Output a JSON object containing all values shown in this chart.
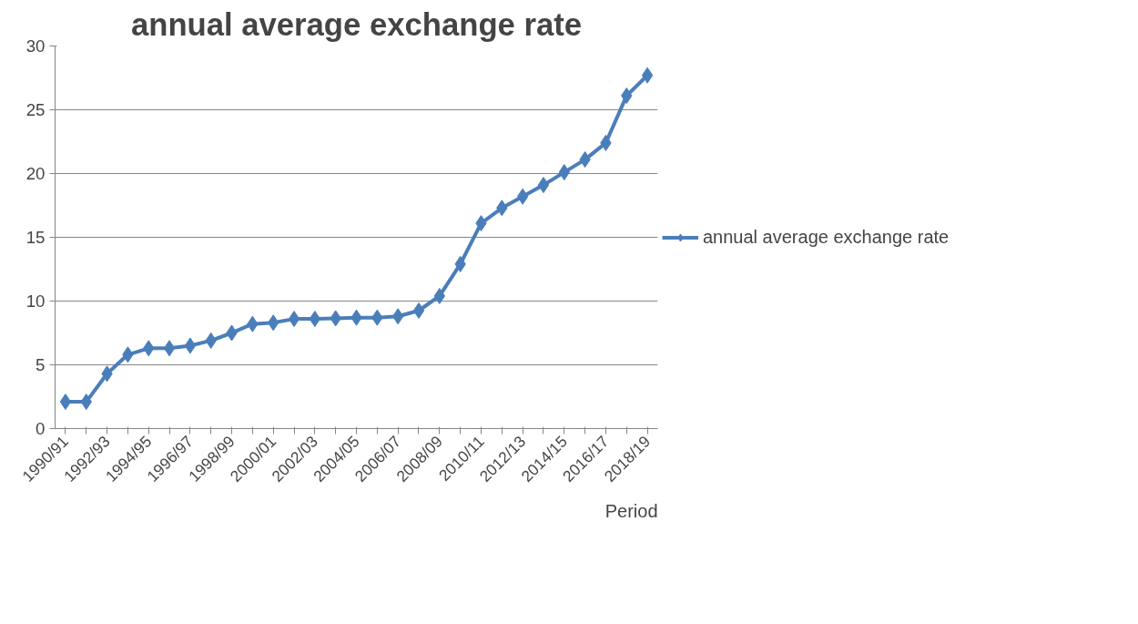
{
  "chart_data": {
    "type": "line",
    "title": "annual average exchange rate",
    "xlabel": "Period",
    "categories": [
      "1990/91",
      null,
      "1992/93",
      null,
      "1994/95",
      null,
      "1996/97",
      null,
      "1998/99",
      null,
      "2000/01",
      null,
      "2002/03",
      null,
      "2004/05",
      null,
      "2006/07",
      null,
      "2008/09",
      null,
      "2010/11",
      null,
      "2012/13",
      null,
      "2014/15",
      null,
      "2016/17",
      null,
      "2018/19"
    ],
    "series": [
      {
        "name": "annual average exchange rate",
        "color": "#4a7ebb",
        "values": [
          2.1,
          2.1,
          4.3,
          5.8,
          6.3,
          6.3,
          6.5,
          6.9,
          7.5,
          8.2,
          8.3,
          8.6,
          8.6,
          8.65,
          8.7,
          8.7,
          8.8,
          9.25,
          10.4,
          12.9,
          16.1,
          17.3,
          18.2,
          19.1,
          20.1,
          21.1,
          22.4,
          26.1,
          27.7
        ]
      }
    ],
    "ylim": [
      0,
      30
    ],
    "yticks": [
      0,
      5,
      10,
      15,
      20,
      25,
      30
    ],
    "grid": "y",
    "legend": "right",
    "marker": "diamond",
    "line_style": "solid"
  }
}
